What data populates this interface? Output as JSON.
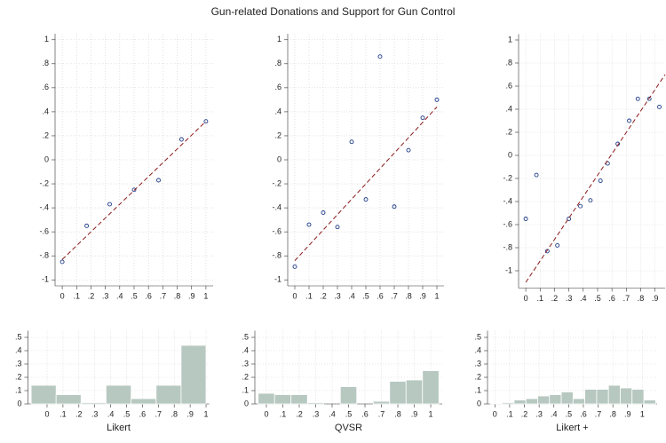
{
  "title": "Gun-related Donations and Support for Gun Control",
  "chart_data": [
    {
      "type": "scatter",
      "xlim": [
        -0.05,
        1.05
      ],
      "ylim": [
        -1.05,
        1.05
      ],
      "grid": true,
      "xticks": [
        0,
        {
          "value": 0.1,
          "label": ".1"
        },
        {
          "value": 0.2,
          "label": ".2"
        },
        {
          "value": 0.3,
          "label": ".3"
        },
        {
          "value": 0.4,
          "label": ".4"
        },
        {
          "value": 0.5,
          "label": ".5"
        },
        {
          "value": 0.6,
          "label": ".6"
        },
        {
          "value": 0.7,
          "label": ".7"
        },
        {
          "value": 0.8,
          "label": ".8"
        },
        {
          "value": 0.9,
          "label": ".9"
        },
        1
      ],
      "yticks": [
        1,
        {
          "value": 0.8,
          "label": ".8"
        },
        {
          "value": 0.6,
          "label": ".6"
        },
        {
          "value": 0.4,
          "label": ".4"
        },
        {
          "value": 0.2,
          "label": ".2"
        },
        0,
        {
          "value": -0.2,
          "label": "-.2"
        },
        {
          "value": -0.4,
          "label": "-.4"
        },
        {
          "value": -0.6,
          "label": "-.6"
        },
        {
          "value": -0.8,
          "label": "-.8"
        },
        -1
      ],
      "series": [
        {
          "style": "points",
          "color": "#1f3c88",
          "x": [
            0,
            0.17,
            0.33,
            0.5,
            0.67,
            0.83,
            1
          ],
          "values": [
            -0.85,
            -0.55,
            -0.37,
            -0.25,
            -0.17,
            0.17,
            0.32
          ]
        },
        {
          "style": "dashed-line",
          "color": "#8b1a1a",
          "x": [
            0,
            1
          ],
          "values": [
            -0.83,
            0.32
          ]
        }
      ]
    },
    {
      "type": "scatter",
      "xlim": [
        -0.05,
        1.05
      ],
      "ylim": [
        -1.05,
        1.05
      ],
      "grid": true,
      "xticks": [
        0,
        {
          "value": 0.1,
          "label": ".1"
        },
        {
          "value": 0.2,
          "label": ".2"
        },
        {
          "value": 0.3,
          "label": ".3"
        },
        {
          "value": 0.4,
          "label": ".4"
        },
        {
          "value": 0.5,
          "label": ".5"
        },
        {
          "value": 0.6,
          "label": ".6"
        },
        {
          "value": 0.7,
          "label": ".7"
        },
        {
          "value": 0.8,
          "label": ".8"
        },
        {
          "value": 0.9,
          "label": ".9"
        },
        1
      ],
      "yticks": [
        1,
        {
          "value": 0.8,
          "label": ".8"
        },
        {
          "value": 0.6,
          "label": ".6"
        },
        {
          "value": 0.4,
          "label": ".4"
        },
        {
          "value": 0.2,
          "label": ".2"
        },
        0,
        {
          "value": -0.2,
          "label": "-.2"
        },
        {
          "value": -0.4,
          "label": "-.4"
        },
        {
          "value": -0.6,
          "label": "-.6"
        },
        {
          "value": -0.8,
          "label": "-.8"
        },
        -1
      ],
      "series": [
        {
          "style": "points",
          "color": "#1f3c88",
          "x": [
            0,
            0.1,
            0.2,
            0.3,
            0.4,
            0.5,
            0.6,
            0.7,
            0.8,
            0.9,
            1
          ],
          "values": [
            -0.89,
            -0.54,
            -0.44,
            -0.56,
            0.15,
            -0.33,
            0.86,
            -0.39,
            0.08,
            0.35,
            0.5
          ]
        },
        {
          "style": "dashed-line",
          "color": "#8b1a1a",
          "x": [
            0,
            1
          ],
          "values": [
            -0.84,
            0.44
          ]
        }
      ]
    },
    {
      "type": "scatter",
      "xlim": [
        -0.05,
        0.97
      ],
      "ylim": [
        -1.15,
        1.05
      ],
      "grid": true,
      "xticks": [
        0,
        {
          "value": 0.1,
          "label": ".1"
        },
        {
          "value": 0.2,
          "label": ".2"
        },
        {
          "value": 0.3,
          "label": ".3"
        },
        {
          "value": 0.4,
          "label": ".4"
        },
        {
          "value": 0.5,
          "label": ".5"
        },
        {
          "value": 0.6,
          "label": ".6"
        },
        {
          "value": 0.7,
          "label": ".7"
        },
        {
          "value": 0.8,
          "label": ".8"
        },
        {
          "value": 0.9,
          "label": ".9"
        }
      ],
      "yticks": [
        1,
        {
          "value": 0.8,
          "label": ".8"
        },
        {
          "value": 0.6,
          "label": ".6"
        },
        {
          "value": 0.4,
          "label": ".4"
        },
        {
          "value": 0.2,
          "label": ".2"
        },
        0,
        {
          "value": -0.2,
          "label": "-.2"
        },
        {
          "value": -0.4,
          "label": "-.4"
        },
        {
          "value": -0.6,
          "label": "-.6"
        },
        {
          "value": -0.8,
          "label": "-.8"
        },
        -1
      ],
      "series": [
        {
          "style": "points",
          "color": "#1f3c88",
          "x": [
            0,
            0.074,
            0.15,
            0.22,
            0.3,
            0.38,
            0.45,
            0.52,
            0.57,
            0.64,
            0.72,
            0.78,
            0.86,
            0.93
          ],
          "values": [
            -0.55,
            -0.17,
            -0.83,
            -0.78,
            -0.55,
            -0.44,
            -0.39,
            -0.22,
            -0.07,
            0.1,
            0.3,
            0.49,
            0.49,
            0.42
          ]
        },
        {
          "style": "dashed-line",
          "color": "#8b1a1a",
          "x": [
            0,
            0.97
          ],
          "values": [
            -1.1,
            0.7
          ]
        }
      ]
    },
    {
      "type": "histogram",
      "xlabel": "Likert",
      "color": "#b7c8c1",
      "xlim": [
        -0.12,
        1.02
      ],
      "ylim": [
        0,
        0.55
      ],
      "grid": true,
      "xticks": [
        0,
        {
          "value": 0.1,
          "label": ".1"
        },
        {
          "value": 0.2,
          "label": ".2"
        },
        {
          "value": 0.3,
          "label": ".3"
        },
        {
          "value": 0.4,
          "label": ".4"
        },
        {
          "value": 0.5,
          "label": ".5"
        },
        {
          "value": 0.6,
          "label": ".6"
        },
        {
          "value": 0.7,
          "label": ".7"
        },
        {
          "value": 0.8,
          "label": ".8"
        },
        {
          "value": 0.9,
          "label": ".9"
        },
        1
      ],
      "yticks": [
        0,
        {
          "value": 0.1,
          "label": ".1"
        },
        {
          "value": 0.2,
          "label": ".2"
        },
        {
          "value": 0.3,
          "label": ".3"
        },
        {
          "value": 0.4,
          "label": ".4"
        },
        {
          "value": 0.5,
          "label": ".5"
        }
      ],
      "bins": [
        -0.1,
        0.057,
        0.214,
        0.371,
        0.529,
        0.686,
        0.843,
        1.0
      ],
      "values": [
        0.14,
        0.07,
        0.01,
        0.14,
        0.04,
        0.14,
        0.44
      ]
    },
    {
      "type": "histogram",
      "xlabel": "QVSR",
      "color": "#b7c8c1",
      "xlim": [
        -0.07,
        1.07
      ],
      "ylim": [
        0,
        0.55
      ],
      "grid": true,
      "xticks": [
        0,
        {
          "value": 0.1,
          "label": ".1"
        },
        {
          "value": 0.2,
          "label": ".2"
        },
        {
          "value": 0.3,
          "label": ".3"
        },
        {
          "value": 0.4,
          "label": ".4"
        },
        {
          "value": 0.5,
          "label": ".5"
        },
        {
          "value": 0.6,
          "label": ".6"
        },
        {
          "value": 0.7,
          "label": ".7"
        },
        {
          "value": 0.8,
          "label": ".8"
        },
        {
          "value": 0.9,
          "label": ".9"
        },
        1
      ],
      "yticks": [
        0,
        {
          "value": 0.1,
          "label": ".1"
        },
        {
          "value": 0.2,
          "label": ".2"
        },
        {
          "value": 0.3,
          "label": ".3"
        },
        {
          "value": 0.4,
          "label": ".4"
        },
        {
          "value": 0.5,
          "label": ".5"
        }
      ],
      "bins": [
        -0.05,
        0.05,
        0.15,
        0.25,
        0.35,
        0.45,
        0.55,
        0.65,
        0.75,
        0.85,
        0.95,
        1.05
      ],
      "values": [
        0.08,
        0.07,
        0.07,
        0.01,
        0,
        0.13,
        0,
        0.02,
        0.17,
        0.18,
        0.25
      ]
    },
    {
      "type": "histogram",
      "xlabel": "Likert +",
      "color": "#b7c8c1",
      "xlim": [
        -0.05,
        1.1
      ],
      "ylim": [
        0,
        0.55
      ],
      "grid": true,
      "xticks": [
        0,
        {
          "value": 0.1,
          "label": ".1"
        },
        {
          "value": 0.2,
          "label": ".2"
        },
        {
          "value": 0.3,
          "label": ".3"
        },
        {
          "value": 0.4,
          "label": ".4"
        },
        {
          "value": 0.5,
          "label": ".5"
        },
        {
          "value": 0.6,
          "label": ".6"
        },
        {
          "value": 0.7,
          "label": ".7"
        },
        {
          "value": 0.8,
          "label": ".8"
        },
        {
          "value": 0.9,
          "label": ".9"
        },
        1
      ],
      "yticks": [
        0,
        {
          "value": 0.1,
          "label": ".1"
        },
        {
          "value": 0.2,
          "label": ".2"
        },
        {
          "value": 0.3,
          "label": ".3"
        },
        {
          "value": 0.4,
          "label": ".4"
        },
        {
          "value": 0.5,
          "label": ".5"
        }
      ],
      "bins": [
        -0.03,
        0.05,
        0.13,
        0.21,
        0.29,
        0.37,
        0.45,
        0.53,
        0.61,
        0.69,
        0.77,
        0.85,
        0.93,
        1.01,
        1.09
      ],
      "values": [
        0.005,
        0.01,
        0.03,
        0.04,
        0.06,
        0.07,
        0.09,
        0.04,
        0.11,
        0.11,
        0.14,
        0.12,
        0.11,
        0.03
      ]
    }
  ]
}
